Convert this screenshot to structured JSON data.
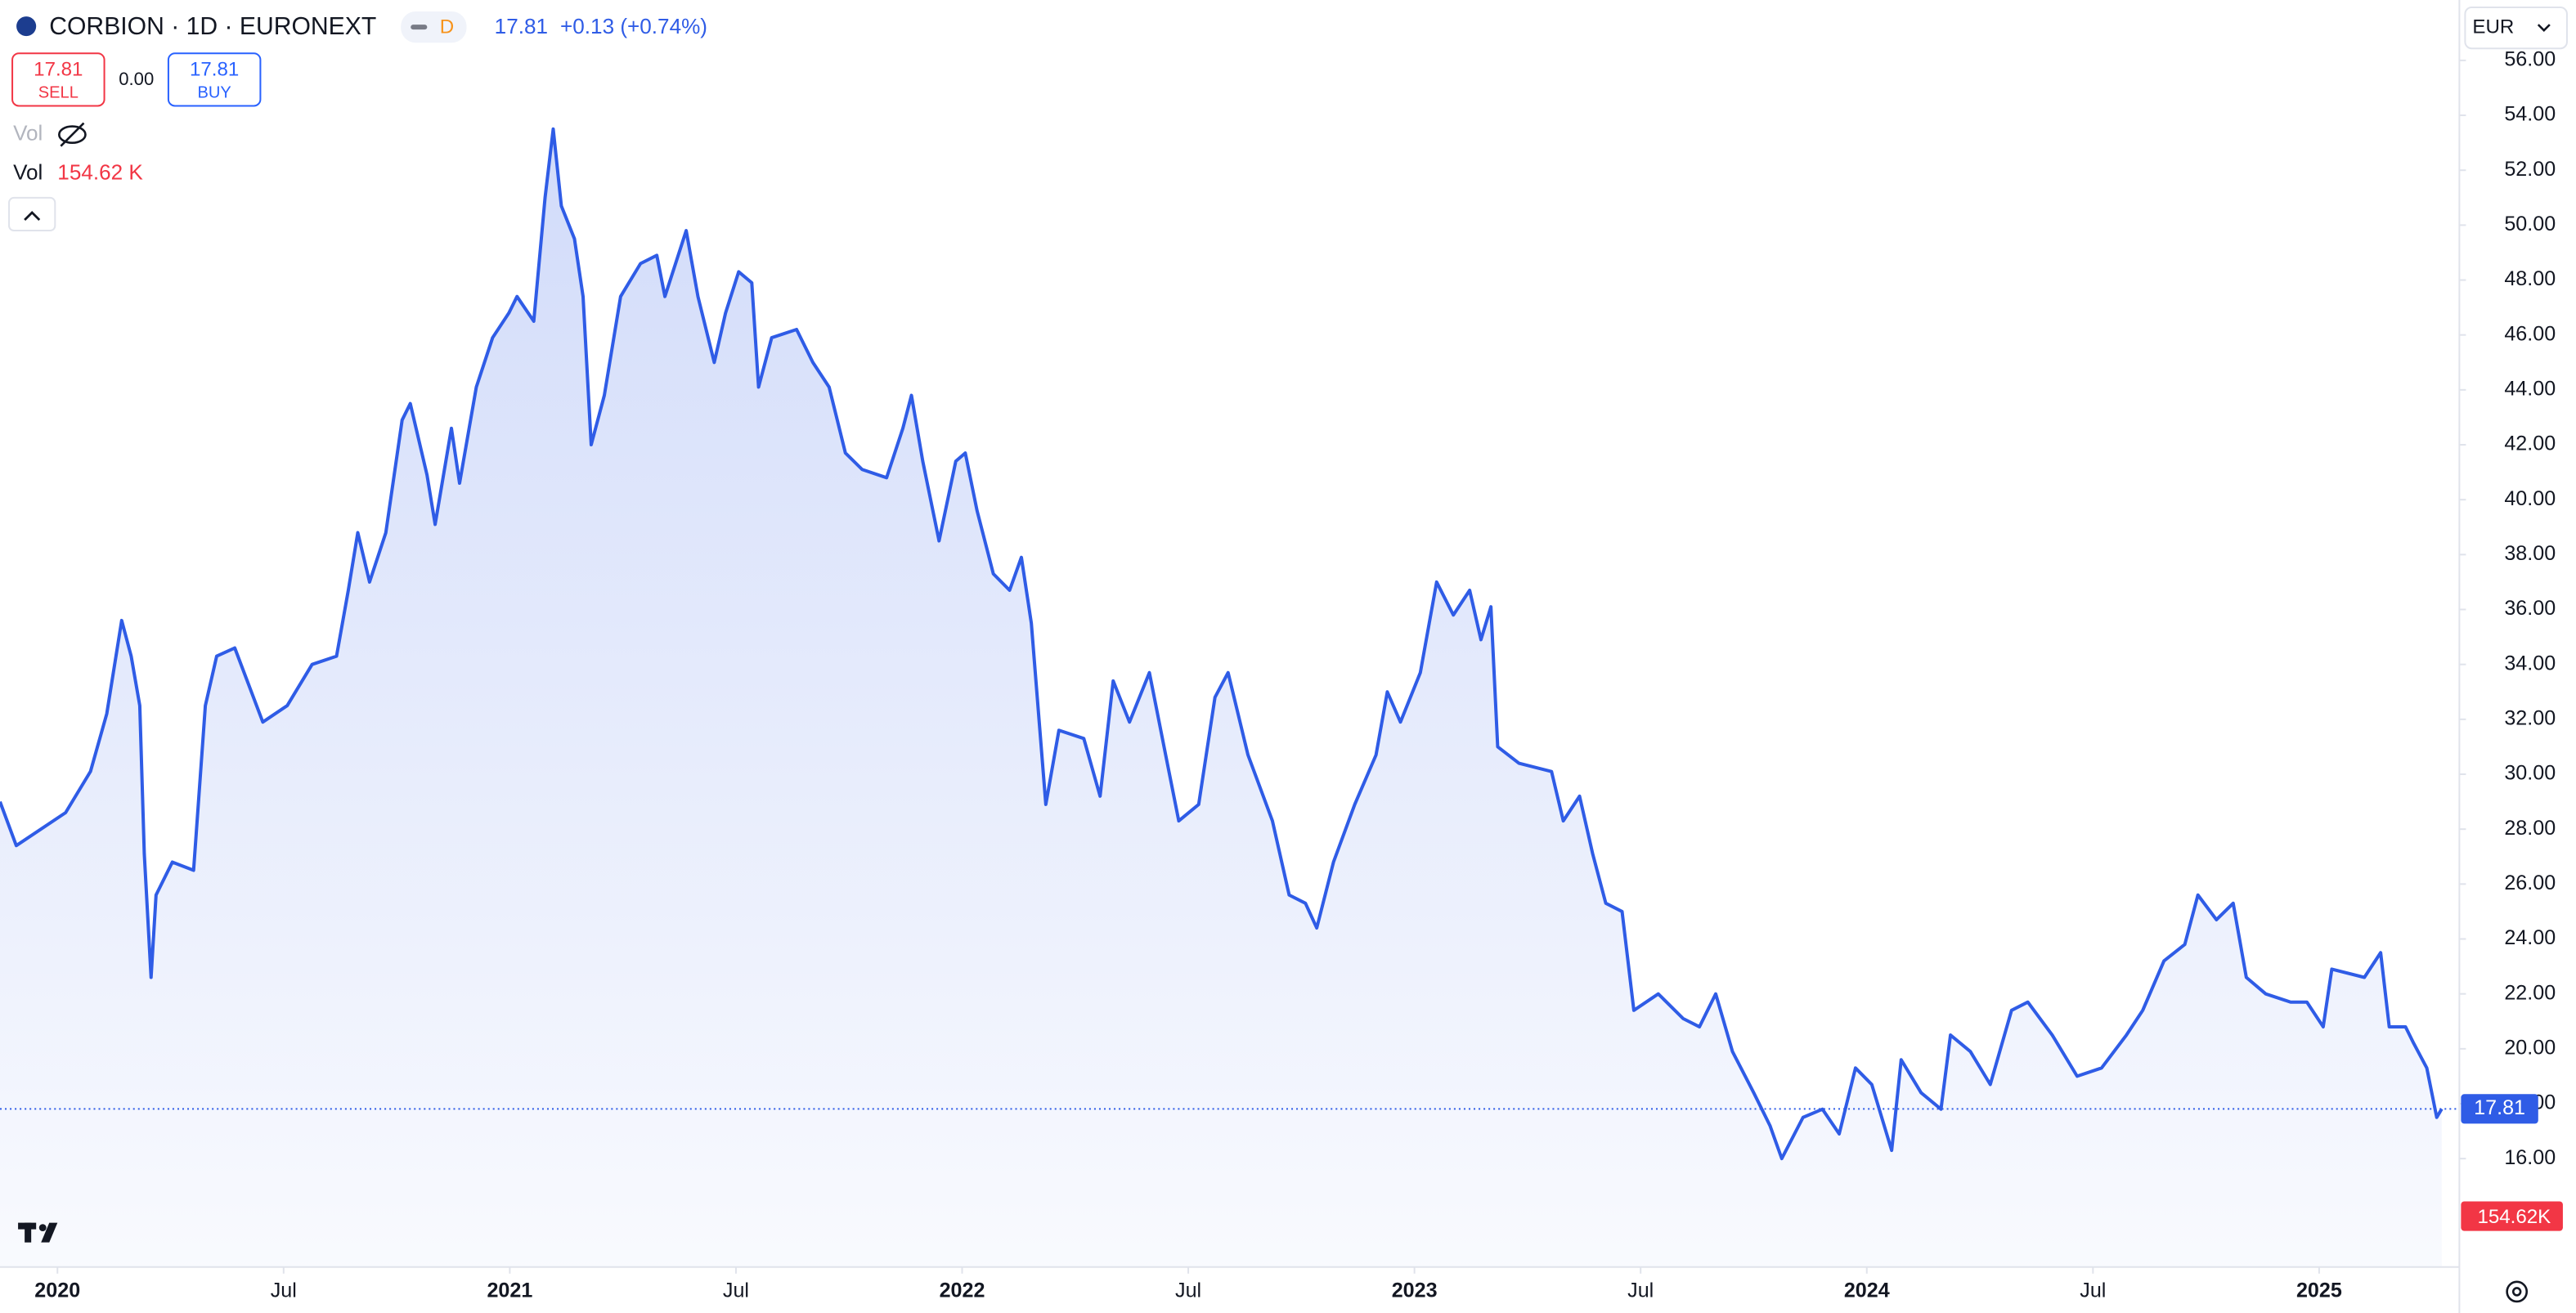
{
  "header": {
    "symbol": "CORBION · 1D · EURONEXT",
    "badge": "D",
    "last": "17.81",
    "change": "+0.13 (+0.74%)"
  },
  "trade": {
    "sell_price": "17.81",
    "sell": "SELL",
    "spread": "0.00",
    "buy_price": "17.81",
    "buy": "BUY"
  },
  "volume": {
    "hidden_label": "Vol",
    "label": "Vol",
    "value": "154.62 K",
    "axis_tag": "154.62K"
  },
  "currency": "EUR",
  "chart_data": {
    "type": "area",
    "color": "#2f5ce6",
    "grid": false,
    "x": [
      2019.873,
      2019.909,
      2020.018,
      2020.073,
      2020.109,
      2020.142,
      2020.163,
      2020.182,
      2020.192,
      2020.207,
      2020.218,
      2020.254,
      2020.301,
      2020.327,
      2020.352,
      2020.392,
      2020.454,
      2020.508,
      2020.563,
      2020.617,
      2020.643,
      2020.664,
      2020.69,
      2020.726,
      2020.762,
      2020.78,
      2020.817,
      2020.835,
      2020.871,
      2020.889,
      2020.926,
      2020.962,
      2020.998,
      2021.016,
      2021.053,
      2021.078,
      2021.096,
      2021.114,
      2021.143,
      2021.162,
      2021.18,
      2021.209,
      2021.245,
      2021.289,
      2021.325,
      2021.343,
      2021.39,
      2021.416,
      2021.452,
      2021.477,
      2021.506,
      2021.535,
      2021.55,
      2021.579,
      2021.634,
      2021.67,
      2021.706,
      2021.742,
      2021.779,
      2021.833,
      2021.869,
      2021.888,
      2021.913,
      2021.949,
      2021.986,
      2022.007,
      2022.033,
      2022.069,
      2022.105,
      2022.131,
      2022.153,
      2022.185,
      2022.214,
      2022.269,
      2022.305,
      2022.334,
      2022.37,
      2022.414,
      2022.45,
      2022.479,
      2022.523,
      2022.559,
      2022.588,
      2022.632,
      2022.686,
      2022.723,
      2022.759,
      2022.784,
      2022.821,
      2022.868,
      2022.915,
      2022.94,
      2022.969,
      2023.013,
      2023.049,
      2023.086,
      2023.122,
      2023.147,
      2023.169,
      2023.184,
      2023.231,
      2023.303,
      2023.329,
      2023.365,
      2023.394,
      2023.423,
      2023.459,
      2023.485,
      2023.539,
      2023.594,
      2023.63,
      2023.666,
      2023.703,
      2023.75,
      2023.786,
      2023.812,
      2023.859,
      2023.902,
      2023.939,
      2023.975,
      2024.011,
      2024.055,
      2024.076,
      2024.12,
      2024.164,
      2024.185,
      2024.229,
      2024.273,
      2024.32,
      2024.356,
      2024.41,
      2024.465,
      2024.519,
      2024.574,
      2024.61,
      2024.657,
      2024.703,
      2024.732,
      2024.773,
      2024.81,
      2024.839,
      2024.882,
      2024.937,
      2024.973,
      2025.009,
      2025.028,
      2025.1,
      2025.136,
      2025.155,
      2025.191,
      2025.209,
      2025.238,
      2025.26,
      2025.271
    ],
    "values": [
      29.0,
      27.4,
      28.6,
      30.1,
      32.2,
      35.6,
      34.3,
      32.5,
      27.1,
      22.6,
      25.6,
      26.8,
      26.5,
      32.5,
      34.3,
      34.6,
      31.9,
      32.5,
      34.0,
      34.3,
      36.7,
      38.8,
      37.0,
      38.8,
      42.9,
      43.5,
      40.9,
      39.1,
      42.6,
      40.6,
      44.1,
      45.9,
      46.8,
      47.4,
      46.5,
      51.0,
      53.5,
      50.7,
      49.5,
      47.4,
      42.0,
      43.8,
      47.4,
      48.6,
      48.9,
      47.4,
      49.8,
      47.4,
      45.0,
      46.8,
      48.3,
      47.9,
      44.1,
      45.9,
      46.2,
      45.0,
      44.1,
      41.7,
      41.1,
      40.8,
      42.6,
      43.8,
      41.4,
      38.5,
      41.4,
      41.7,
      39.6,
      37.3,
      36.7,
      37.9,
      35.5,
      28.9,
      31.6,
      31.3,
      29.2,
      33.4,
      31.9,
      33.7,
      30.7,
      28.3,
      28.9,
      32.8,
      33.7,
      30.7,
      28.3,
      25.6,
      25.3,
      24.4,
      26.8,
      28.9,
      30.7,
      33.0,
      31.9,
      33.7,
      37.0,
      35.8,
      36.7,
      34.9,
      36.1,
      31.0,
      30.4,
      30.1,
      28.3,
      29.2,
      27.1,
      25.3,
      25.0,
      21.4,
      22.0,
      21.1,
      20.8,
      22.0,
      19.9,
      18.4,
      17.2,
      16.0,
      17.5,
      17.8,
      16.9,
      19.3,
      18.7,
      16.3,
      19.6,
      18.4,
      17.8,
      20.5,
      19.9,
      18.7,
      21.4,
      21.7,
      20.5,
      19.0,
      19.3,
      20.5,
      21.4,
      23.2,
      23.8,
      25.6,
      24.7,
      25.3,
      22.6,
      22.0,
      21.7,
      21.7,
      20.8,
      22.9,
      22.6,
      23.5,
      20.8,
      20.8,
      20.2,
      19.3,
      17.5,
      17.81
    ],
    "last_value": 17.81,
    "last_label": "17.81",
    "xlim": [
      2019.873,
      2025.31
    ],
    "xticks": [
      2020,
      {
        "value": 2020.5,
        "label": "Jul"
      },
      2021,
      {
        "value": 2021.5,
        "label": "Jul"
      },
      2022,
      {
        "value": 2022.5,
        "label": "Jul"
      },
      2023,
      {
        "value": 2023.5,
        "label": "Jul"
      },
      2024,
      {
        "value": 2024.5,
        "label": "Jul"
      },
      2025
    ],
    "ylim": [
      12.05,
      58.2
    ],
    "yticks": [
      {
        "value": 16,
        "label": "16.00"
      },
      {
        "value": 18,
        "label": "18.00"
      },
      {
        "value": 20,
        "label": "20.00"
      },
      {
        "value": 22,
        "label": "22.00"
      },
      {
        "value": 24,
        "label": "24.00"
      },
      {
        "value": 26,
        "label": "26.00"
      },
      {
        "value": 28,
        "label": "28.00"
      },
      {
        "value": 30,
        "label": "30.00"
      },
      {
        "value": 32,
        "label": "32.00"
      },
      {
        "value": 34,
        "label": "34.00"
      },
      {
        "value": 36,
        "label": "36.00"
      },
      {
        "value": 38,
        "label": "38.00"
      },
      {
        "value": 40,
        "label": "40.00"
      },
      {
        "value": 42,
        "label": "42.00"
      },
      {
        "value": 44,
        "label": "44.00"
      },
      {
        "value": 46,
        "label": "46.00"
      },
      {
        "value": 48,
        "label": "48.00"
      },
      {
        "value": 50,
        "label": "50.00"
      },
      {
        "value": 52,
        "label": "52.00"
      },
      {
        "value": 54,
        "label": "54.00"
      },
      {
        "value": 56,
        "label": "56.00"
      }
    ]
  }
}
